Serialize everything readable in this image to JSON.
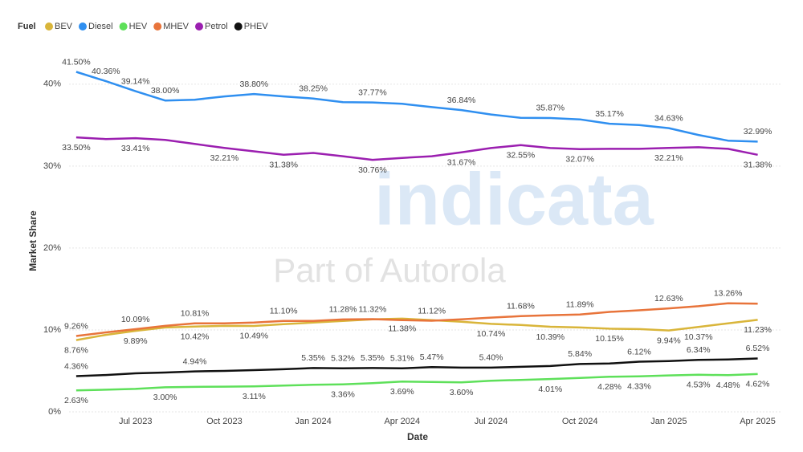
{
  "chart_data": {
    "type": "line",
    "legend_title": "Fuel",
    "legend_position": "top-left",
    "xlabel": "Date",
    "ylabel": "Market Share",
    "watermark": [
      "indicata",
      "Part of Autorola"
    ],
    "grid": true,
    "categories": [
      null,
      null,
      "Jul 2023",
      null,
      null,
      "Oct 2023",
      null,
      null,
      "Jan 2024",
      null,
      null,
      "Apr 2024",
      null,
      null,
      "Jul 2024",
      null,
      null,
      "Oct 2024",
      null,
      null,
      "Jan 2025",
      null,
      null,
      "Apr 2025"
    ],
    "ylim": [
      0,
      44
    ],
    "yticks": [
      {
        "value": 0,
        "label": "0%"
      },
      {
        "value": 10,
        "label": "10%"
      },
      {
        "value": 20,
        "label": "20%"
      },
      {
        "value": 30,
        "label": "30%"
      },
      {
        "value": 40,
        "label": "40%"
      }
    ],
    "series": [
      {
        "name": "BEV",
        "color": "#d9b53a",
        "values": [
          8.76,
          9.4,
          9.89,
          10.3,
          10.42,
          10.5,
          10.49,
          10.7,
          10.9,
          11.1,
          11.3,
          11.38,
          11.2,
          11.0,
          10.74,
          10.6,
          10.39,
          10.3,
          10.15,
          10.1,
          9.94,
          10.37,
          10.8,
          11.23
        ],
        "value_labels": [
          "8.76%",
          null,
          "9.89%",
          null,
          "10.42%",
          null,
          "10.49%",
          null,
          null,
          null,
          null,
          "11.38%",
          null,
          null,
          "10.74%",
          null,
          "10.39%",
          null,
          "10.15%",
          null,
          "9.94%",
          "10.37%",
          null,
          "11.23%"
        ]
      },
      {
        "name": "Diesel",
        "color": "#2f8ff0",
        "values": [
          41.5,
          40.36,
          39.14,
          38.0,
          38.1,
          38.5,
          38.8,
          38.5,
          38.25,
          37.8,
          37.77,
          37.6,
          37.2,
          36.84,
          36.3,
          35.9,
          35.87,
          35.7,
          35.17,
          35.0,
          34.63,
          33.8,
          33.1,
          32.99
        ],
        "value_labels": [
          "41.50%",
          "40.36%",
          "39.14%",
          "38.00%",
          null,
          null,
          "38.80%",
          null,
          "38.25%",
          null,
          "37.77%",
          null,
          null,
          "36.84%",
          null,
          null,
          "35.87%",
          null,
          "35.17%",
          null,
          "34.63%",
          null,
          null,
          "32.99%"
        ]
      },
      {
        "name": "HEV",
        "color": "#5ee05a",
        "values": [
          2.63,
          2.7,
          2.8,
          3.0,
          3.05,
          3.08,
          3.11,
          3.2,
          3.3,
          3.36,
          3.5,
          3.69,
          3.65,
          3.6,
          3.8,
          3.9,
          4.01,
          4.15,
          4.28,
          4.33,
          4.45,
          4.53,
          4.48,
          4.62
        ],
        "value_labels": [
          "2.63%",
          null,
          null,
          "3.00%",
          null,
          null,
          "3.11%",
          null,
          null,
          "3.36%",
          null,
          "3.69%",
          null,
          "3.60%",
          null,
          null,
          "4.01%",
          null,
          "4.28%",
          "4.33%",
          null,
          "4.53%",
          "4.48%",
          "4.62%"
        ]
      },
      {
        "name": "MHEV",
        "color": "#e8743b",
        "values": [
          9.26,
          9.7,
          10.09,
          10.5,
          10.81,
          10.8,
          10.9,
          11.1,
          11.1,
          11.28,
          11.32,
          11.2,
          11.12,
          11.3,
          11.5,
          11.68,
          11.8,
          11.89,
          12.2,
          12.4,
          12.63,
          12.9,
          13.26,
          13.2
        ],
        "value_labels": [
          "9.26%",
          null,
          "10.09%",
          null,
          "10.81%",
          null,
          null,
          "11.10%",
          null,
          "11.28%",
          "11.32%",
          null,
          "11.12%",
          null,
          null,
          "11.68%",
          null,
          "11.89%",
          null,
          null,
          "12.63%",
          null,
          "13.26%",
          null
        ]
      },
      {
        "name": "Petrol",
        "color": "#9b1fb0",
        "values": [
          33.5,
          33.3,
          33.41,
          33.2,
          32.7,
          32.21,
          31.8,
          31.38,
          31.6,
          31.2,
          30.76,
          31.0,
          31.2,
          31.67,
          32.2,
          32.55,
          32.2,
          32.07,
          32.1,
          32.1,
          32.21,
          32.3,
          32.1,
          31.38
        ],
        "value_labels": [
          "33.50%",
          null,
          "33.41%",
          null,
          null,
          "32.21%",
          null,
          "31.38%",
          null,
          null,
          "30.76%",
          null,
          null,
          "31.67%",
          null,
          "32.55%",
          null,
          "32.07%",
          null,
          null,
          "32.21%",
          null,
          null,
          "31.38%"
        ]
      },
      {
        "name": "PHEV",
        "color": "#111111",
        "values": [
          4.36,
          4.5,
          4.7,
          4.8,
          4.94,
          5.0,
          5.1,
          5.2,
          5.35,
          5.32,
          5.35,
          5.31,
          5.47,
          5.4,
          5.4,
          5.5,
          5.6,
          5.84,
          5.9,
          6.12,
          6.2,
          6.34,
          6.4,
          6.52
        ],
        "value_labels": [
          "4.36%",
          null,
          null,
          null,
          "4.94%",
          null,
          null,
          null,
          "5.35%",
          "5.32%",
          "5.35%",
          "5.31%",
          "5.47%",
          null,
          "5.40%",
          null,
          null,
          "5.84%",
          null,
          "6.12%",
          null,
          "6.34%",
          null,
          "6.52%"
        ]
      }
    ]
  }
}
